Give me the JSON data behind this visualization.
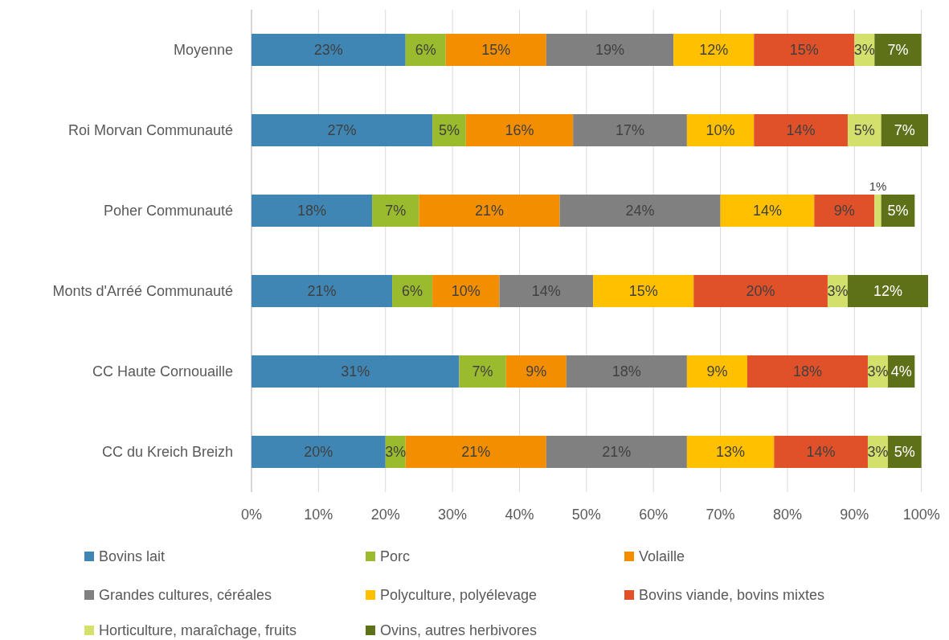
{
  "chart_data": {
    "type": "bar",
    "orientation": "horizontal",
    "stacked": true,
    "grid": "x",
    "legend": "bottom",
    "categories": [
      "Moyenne",
      "Roi Morvan Communauté",
      "Poher Communauté",
      "Monts d'Arréé Communauté",
      "CC Haute Cornouaille",
      "CC du Kreich Breizh"
    ],
    "xlim": [
      0,
      101
    ],
    "xticks": [
      {
        "value": 0,
        "label": "0%"
      },
      {
        "value": 10,
        "label": "10%"
      },
      {
        "value": 20,
        "label": "20%"
      },
      {
        "value": 30,
        "label": "30%"
      },
      {
        "value": 40,
        "label": "40%"
      },
      {
        "value": 50,
        "label": "50%"
      },
      {
        "value": 60,
        "label": "60%"
      },
      {
        "value": 70,
        "label": "70%"
      },
      {
        "value": 80,
        "label": "80%"
      },
      {
        "value": 90,
        "label": "90%"
      },
      {
        "value": 100,
        "label": "100%"
      }
    ],
    "series": [
      {
        "name": "Bovins lait",
        "color": "#3f86b4",
        "values": [
          23,
          27,
          18,
          21,
          31,
          20
        ],
        "value_labels": [
          "23%",
          "27%",
          "18%",
          "21%",
          "31%",
          "20%"
        ]
      },
      {
        "name": "Porc",
        "color": "#9bbb2e",
        "values": [
          6,
          5,
          7,
          6,
          7,
          3
        ],
        "value_labels": [
          "6%",
          "5%",
          "7%",
          "6%",
          "7%",
          "3%"
        ]
      },
      {
        "name": "Volaille",
        "color": "#f28e00",
        "values": [
          15,
          16,
          21,
          10,
          9,
          21
        ],
        "value_labels": [
          "15%",
          "16%",
          "21%",
          "10%",
          "9%",
          "21%"
        ]
      },
      {
        "name": "Grandes cultures, céréales",
        "color": "#808080",
        "values": [
          19,
          17,
          24,
          14,
          18,
          21
        ],
        "value_labels": [
          "19%",
          "17%",
          "24%",
          "14%",
          "18%",
          "21%"
        ]
      },
      {
        "name": "Polyculture, polyélevage",
        "color": "#ffc000",
        "values": [
          12,
          10,
          14,
          15,
          9,
          13
        ],
        "value_labels": [
          "12%",
          "10%",
          "14%",
          "15%",
          "9%",
          "13%"
        ]
      },
      {
        "name": "Bovins viande, bovins mixtes",
        "color": "#e0512a",
        "values": [
          15,
          14,
          9,
          20,
          18,
          14
        ],
        "value_labels": [
          "15%",
          "14%",
          "9%",
          "20%",
          "18%",
          "14%"
        ]
      },
      {
        "name": "Horticulture, maraîchage, fruits",
        "color": "#d4e06c",
        "values": [
          3,
          5,
          1,
          3,
          3,
          3
        ],
        "value_labels": [
          "3%",
          "5%",
          "1%",
          "3%",
          "3%",
          "3%"
        ]
      },
      {
        "name": "Ovins, autres herbivores",
        "color": "#5e7018",
        "values": [
          7,
          7,
          5,
          12,
          4,
          5
        ],
        "value_labels": [
          "7%",
          "7%",
          "5%",
          "12%",
          "4%",
          "5%"
        ]
      }
    ]
  }
}
